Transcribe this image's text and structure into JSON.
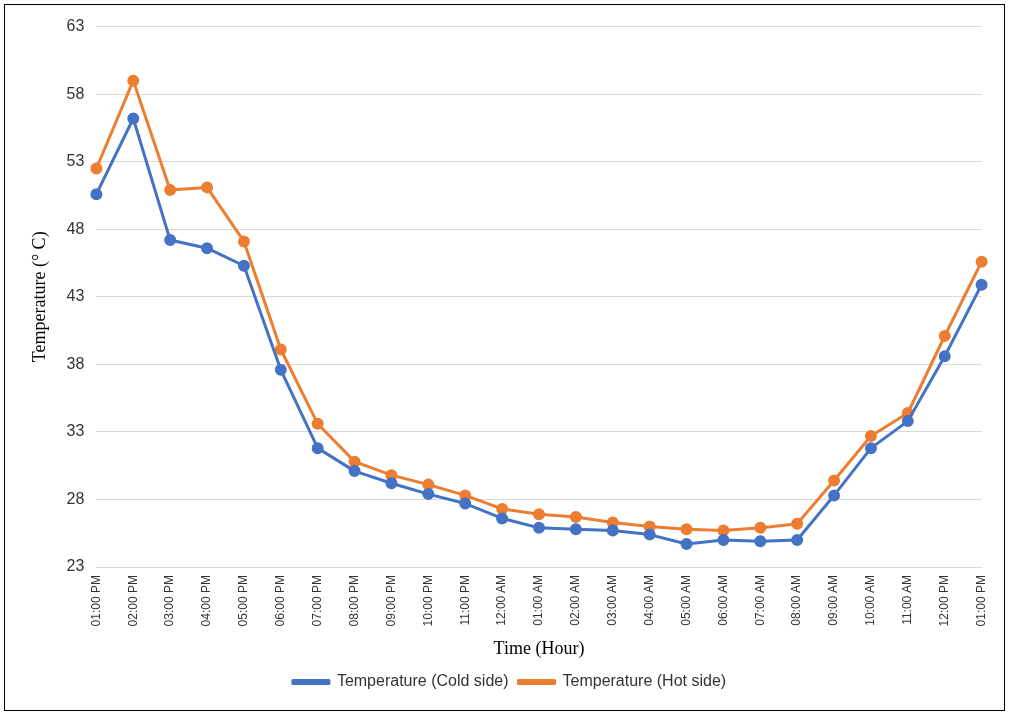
{
  "chart_data": {
    "type": "line",
    "xlabel": "Time (Hour)",
    "ylabel": "Temperature (° C)",
    "categories": [
      "01:00 PM",
      "02:00 PM",
      "03:00 PM",
      "04:00 PM",
      "05:00 PM",
      "06:00 PM",
      "07:00 PM",
      "08:00 PM",
      "09:00 PM",
      "10:00 PM",
      "11:00 PM",
      "12:00 AM",
      "01:00 AM",
      "02:00 AM",
      "03:00 AM",
      "04:00 AM",
      "05:00 AM",
      "06:00 AM",
      "07:00 AM",
      "08:00 AM",
      "09:00 AM",
      "10:00 AM",
      "11:00 AM",
      "12:00 PM",
      "01:00 PM"
    ],
    "series": [
      {
        "name": "Temperature (Cold side)",
        "color": "#4472c4",
        "values": [
          50.6,
          56.2,
          47.2,
          46.6,
          45.3,
          37.6,
          31.8,
          30.1,
          29.2,
          28.4,
          27.7,
          26.6,
          25.9,
          25.8,
          25.7,
          25.4,
          24.7,
          25.0,
          24.9,
          25.0,
          28.3,
          31.8,
          33.8,
          38.6,
          43.9
        ]
      },
      {
        "name": "Temperature (Hot side)",
        "color": "#ed7d31",
        "values": [
          52.5,
          59.0,
          50.9,
          51.1,
          47.1,
          39.1,
          33.6,
          30.8,
          29.8,
          29.1,
          28.3,
          27.3,
          26.9,
          26.7,
          26.3,
          26.0,
          25.8,
          25.7,
          25.9,
          26.2,
          29.4,
          32.7,
          34.4,
          40.1,
          45.6
        ]
      }
    ],
    "ylim": [
      23,
      63
    ],
    "yticks": [
      23,
      28,
      33,
      38,
      43,
      48,
      53,
      58,
      63
    ],
    "grid": "y",
    "legend": "bottom",
    "marker": "circle",
    "line_style": "solid"
  }
}
